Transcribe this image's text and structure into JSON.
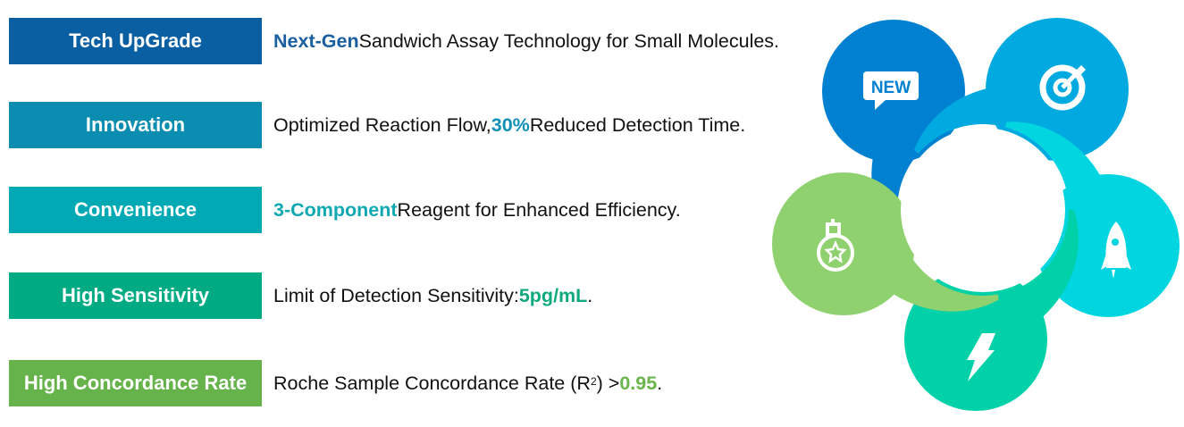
{
  "rows": [
    {
      "label": "Tech UpGrade",
      "color": "#0a5fa3",
      "highlight_color": "#1a5fa0",
      "segments": [
        {
          "text": "Next-Gen",
          "hl": true
        },
        {
          "text": " Sandwich Assay Technology for Small Molecules."
        }
      ]
    },
    {
      "label": "Innovation",
      "color": "#0b8cb1",
      "highlight_color": "#1190b8",
      "segments": [
        {
          "text": "Optimized Reaction Flow, "
        },
        {
          "text": "30%",
          "hl": true
        },
        {
          "text": " Reduced Detection Time."
        }
      ]
    },
    {
      "label": "Convenience",
      "color": "#00a9b4",
      "highlight_color": "#10a9b2",
      "segments": [
        {
          "text": "3-Component",
          "hl": true
        },
        {
          "text": " Reagent for Enhanced Efficiency."
        }
      ]
    },
    {
      "label": "High Sensitivity",
      "color": "#00aa82",
      "highlight_color": "#10a97e",
      "segments": [
        {
          "text": "Limit of Detection Sensitivity: "
        },
        {
          "text": "5pg/mL",
          "hl": true
        },
        {
          "text": "."
        }
      ]
    },
    {
      "label": "High Concordance Rate",
      "color": "#67b34b",
      "highlight_color": "#6ab44c",
      "segments": [
        {
          "text": "Roche Sample Concordance Rate (R"
        },
        {
          "text": "2",
          "sup": true
        },
        {
          "text": ") >"
        },
        {
          "text": "0.95",
          "hl": true
        },
        {
          "text": "."
        }
      ]
    }
  ],
  "diagram": {
    "petals": [
      {
        "icon": "new-badge-icon",
        "icon_text": "NEW",
        "color": "#0080d0"
      },
      {
        "icon": "target-icon",
        "color": "#00a9e0"
      },
      {
        "icon": "rocket-icon",
        "color": "#00d5e0"
      },
      {
        "icon": "lightning-icon",
        "color": "#00d1a8"
      },
      {
        "icon": "medal-icon",
        "color": "#8fd16f"
      }
    ]
  }
}
